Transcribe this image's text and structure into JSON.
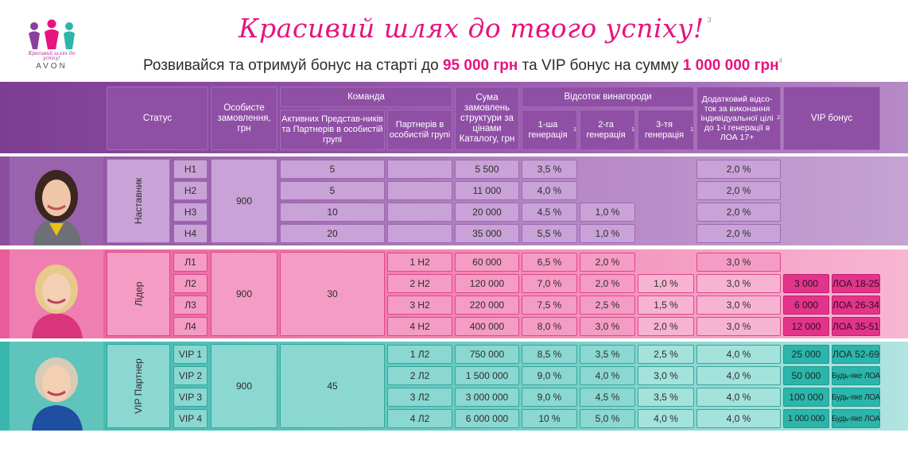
{
  "logo": {
    "slogan": "Красивий шлях до успіху!",
    "brand": "AVON"
  },
  "title": "Красивий шлях до твого успіху!",
  "title_sup": "3",
  "subtitle": {
    "part1": "Розвивайся та отримуй бонус на старті до ",
    "amount1": "95 000 грн",
    "part2": " та VIP бонус на сумму ",
    "amount2": "1 000 000 грн",
    "sup": "4"
  },
  "header": {
    "status": "Статус",
    "personal_order": "Особисте замовлення, грн",
    "team": "Команда",
    "active_reps": "Активних Представ-ників та Партнерів в особистій групі",
    "partners": "Партнерів в особистій групі",
    "structure_sum": "Сума замовлень структури за цінами Каталогу, грн",
    "reward_percent": "Відсоток винагороди",
    "gen1": "1-ша генерація",
    "gen2": "2-га генерація",
    "gen3": "3-тя генерація",
    "gen_sup": "1",
    "additional": "Додатковий відсо-ток за виконання індивідуальної цілі до 1-ї генерації в ЛОА 17+",
    "additional_sup": "2",
    "vip_bonus": "VIP бонус"
  },
  "groups": {
    "mentor": {
      "name": "Наставник",
      "personal": "900",
      "active": ""
    },
    "leader": {
      "name": "Лідер",
      "personal": "900",
      "active": "30"
    },
    "vip": {
      "name": "VIP Партнер",
      "personal": "900",
      "active": "45"
    }
  },
  "mentor_rows": [
    {
      "level": "Н1",
      "active": "5",
      "partners": "",
      "sum": "5 500",
      "g1": "3,5 %",
      "g2": "",
      "g3": "",
      "add": "2,0 %"
    },
    {
      "level": "Н2",
      "active": "5",
      "partners": "",
      "sum": "11 000",
      "g1": "4,0 %",
      "g2": "",
      "g3": "",
      "add": "2,0 %"
    },
    {
      "level": "Н3",
      "active": "10",
      "partners": "",
      "sum": "20 000",
      "g1": "4,5 %",
      "g2": "1,0 %",
      "g3": "",
      "add": "2,0 %"
    },
    {
      "level": "Н4",
      "active": "20",
      "partners": "",
      "sum": "35 000",
      "g1": "5,5 %",
      "g2": "1,0 %",
      "g3": "",
      "add": "2,0 %"
    }
  ],
  "leader_rows": [
    {
      "level": "Л1",
      "partners": "1 Н2",
      "sum": "60 000",
      "g1": "6,5 %",
      "g2": "2,0 %",
      "g3": "",
      "add": "3,0 %",
      "vip_amount": "",
      "vip_loa": ""
    },
    {
      "level": "Л2",
      "partners": "2 Н2",
      "sum": "120 000",
      "g1": "7,0 %",
      "g2": "2,0 %",
      "g3": "1,0 %",
      "add": "3,0 %",
      "vip_amount": "3 000",
      "vip_loa": "ЛОА 18-25"
    },
    {
      "level": "Л3",
      "partners": "3 Н2",
      "sum": "220 000",
      "g1": "7,5 %",
      "g2": "2,5 %",
      "g3": "1,5 %",
      "add": "3,0 %",
      "vip_amount": "6 000",
      "vip_loa": "ЛОА 26-34"
    },
    {
      "level": "Л4",
      "partners": "4 Н2",
      "sum": "400 000",
      "g1": "8,0 %",
      "g2": "3,0 %",
      "g3": "2,0 %",
      "add": "3,0 %",
      "vip_amount": "12 000",
      "vip_loa": "ЛОА 35-51"
    }
  ],
  "vip_rows": [
    {
      "level": "VIP 1",
      "partners": "1 Л2",
      "sum": "750 000",
      "g1": "8,5 %",
      "g2": "3,5 %",
      "g3": "2,5 %",
      "add": "4,0 %",
      "vip_amount": "25 000",
      "vip_loa": "ЛОА 52-69"
    },
    {
      "level": "VIP 2",
      "partners": "2 Л2",
      "sum": "1 500 000",
      "g1": "9,0 %",
      "g2": "4,0 %",
      "g3": "3,0 %",
      "add": "4,0 %",
      "vip_amount": "50 000",
      "vip_loa": "Будь-яке ЛОА"
    },
    {
      "level": "VIP 3",
      "partners": "3 Л2",
      "sum": "3 000 000",
      "g1": "9,0 %",
      "g2": "4,5 %",
      "g3": "3,5 %",
      "add": "4,0 %",
      "vip_amount": "100 000",
      "vip_loa": "Будь-яке ЛОА"
    },
    {
      "level": "VIP 4",
      "partners": "4 Л2",
      "sum": "6 000 000",
      "g1": "10 %",
      "g2": "5,0 %",
      "g3": "4,0 %",
      "add": "4,0 %",
      "vip_amount": "1 000 000",
      "vip_loa": "Будь-яке ЛОА"
    }
  ],
  "colors": {
    "brand_pink": "#e6137e",
    "mentor": "#9c5fb0",
    "leader": "#f18bb6",
    "vip": "#72ccc6"
  }
}
